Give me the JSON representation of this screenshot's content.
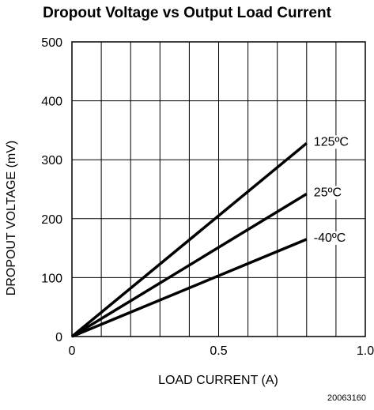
{
  "chart_data": {
    "type": "line",
    "title": "Dropout Voltage vs Output Load Current",
    "xlabel": "LOAD CURRENT (A)",
    "ylabel": "DROPOUT VOLTAGE (mV)",
    "xlim": [
      0,
      1.0
    ],
    "ylim": [
      0,
      500
    ],
    "x_ticks": [
      "0",
      "0.5",
      "1.0"
    ],
    "x_tick_values": [
      0,
      0.5,
      1.0
    ],
    "y_ticks": [
      "0",
      "100",
      "200",
      "300",
      "400",
      "500"
    ],
    "y_tick_values": [
      0,
      100,
      200,
      300,
      400,
      500
    ],
    "x_grid_step": 0.1,
    "y_grid_step": 100,
    "grid": true,
    "legend": "none (direct labels at line ends)",
    "series": [
      {
        "name": "125ºC",
        "x": [
          0,
          0.8
        ],
        "y": [
          0,
          328
        ]
      },
      {
        "name": "25ºC",
        "x": [
          0,
          0.8
        ],
        "y": [
          0,
          242
        ]
      },
      {
        "name": "-40ºC",
        "x": [
          0,
          0.8
        ],
        "y": [
          0,
          165
        ]
      }
    ]
  },
  "figure_id": "20063160"
}
